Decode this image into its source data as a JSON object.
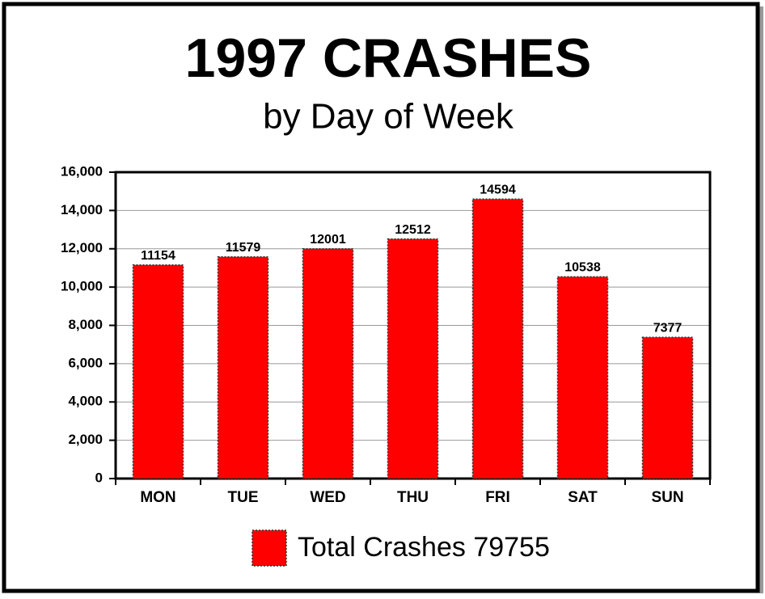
{
  "chart_data": {
    "type": "bar",
    "title": "1997 CRASHES",
    "subtitle": "by Day of Week",
    "categories": [
      "MON",
      "TUE",
      "WED",
      "THU",
      "FRI",
      "SAT",
      "SUN"
    ],
    "series": [
      {
        "name": "Total Crashes 79755",
        "color": "#ff0000",
        "values": [
          11154,
          11579,
          12001,
          12512,
          14594,
          10538,
          7377
        ]
      }
    ],
    "ylim": [
      0,
      16000
    ],
    "yticks": [
      0,
      {
        "value": 2000,
        "label": "2,000"
      },
      {
        "value": 4000,
        "label": "4,000"
      },
      {
        "value": 6000,
        "label": "6,000"
      },
      {
        "value": 8000,
        "label": "8,000"
      },
      {
        "value": 10000,
        "label": "10,000"
      },
      {
        "value": 12000,
        "label": "12,000"
      },
      {
        "value": 14000,
        "label": "14,000"
      },
      {
        "value": 16000,
        "label": "16,000"
      }
    ],
    "grid": true,
    "legend": "bottom"
  }
}
